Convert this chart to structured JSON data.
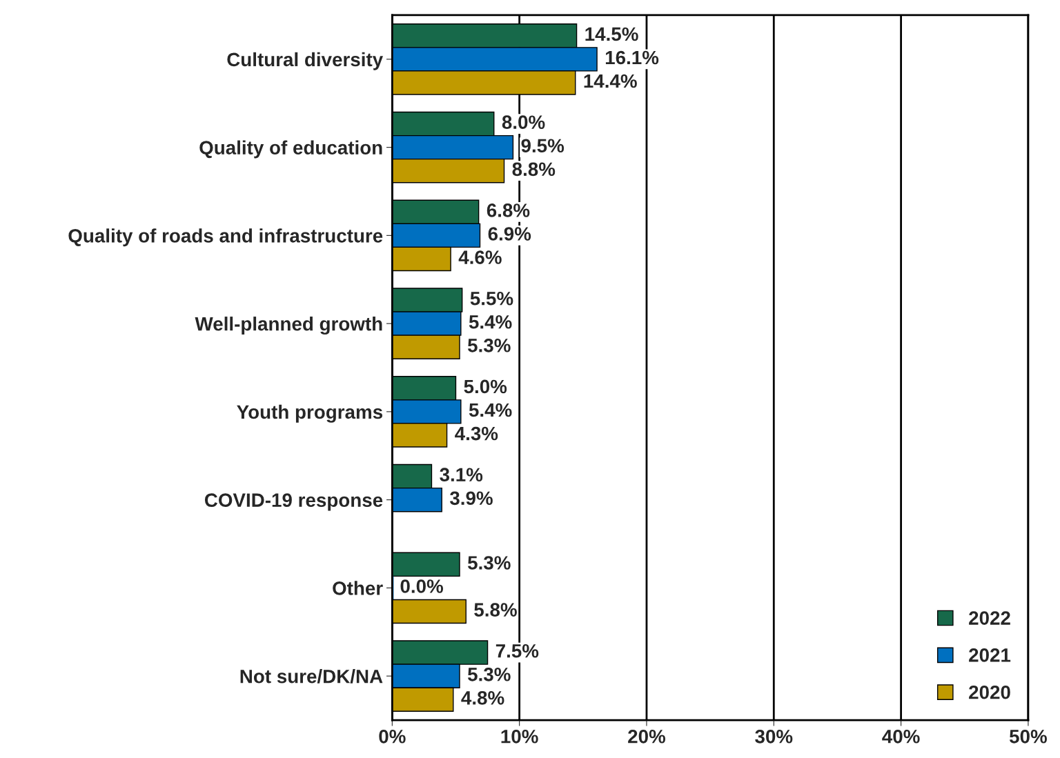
{
  "chart_data": {
    "type": "bar",
    "orientation": "horizontal",
    "categories": [
      "Cultural diversity",
      "Quality of education",
      "Quality of roads and infrastructure",
      "Well-planned growth",
      "Youth programs",
      "COVID-19 response",
      "Other",
      "Not sure/DK/NA"
    ],
    "series": [
      {
        "name": "2022",
        "color": "#17694a",
        "values": [
          14.5,
          8.0,
          6.8,
          5.5,
          5.0,
          3.1,
          5.3,
          7.5
        ],
        "value_labels": [
          "14.5%",
          "8.0%",
          "6.8%",
          "5.5%",
          "5.0%",
          "3.1%",
          "5.3%",
          "7.5%"
        ]
      },
      {
        "name": "2021",
        "color": "#0070c0",
        "values": [
          16.1,
          9.5,
          6.9,
          5.4,
          5.4,
          3.9,
          0.0,
          5.3
        ],
        "value_labels": [
          "16.1%",
          "9.5%",
          "6.9%",
          "5.4%",
          "5.4%",
          "3.9%",
          "0.0%",
          "5.3%"
        ]
      },
      {
        "name": "2020",
        "color": "#c09a00",
        "values": [
          14.4,
          8.8,
          4.6,
          5.3,
          4.3,
          null,
          5.8,
          4.8
        ],
        "value_labels": [
          "14.4%",
          "8.8%",
          "4.6%",
          "5.3%",
          "4.3%",
          null,
          "5.8%",
          "4.8%"
        ]
      }
    ],
    "xlim": [
      0,
      50
    ],
    "xticks": [
      {
        "value": 0,
        "label": "0%"
      },
      {
        "value": 10,
        "label": "10%"
      },
      {
        "value": 20,
        "label": "20%"
      },
      {
        "value": 30,
        "label": "30%"
      },
      {
        "value": 40,
        "label": "40%"
      },
      {
        "value": 50,
        "label": "50%"
      }
    ],
    "grid": "x",
    "legend": "bottom right"
  }
}
